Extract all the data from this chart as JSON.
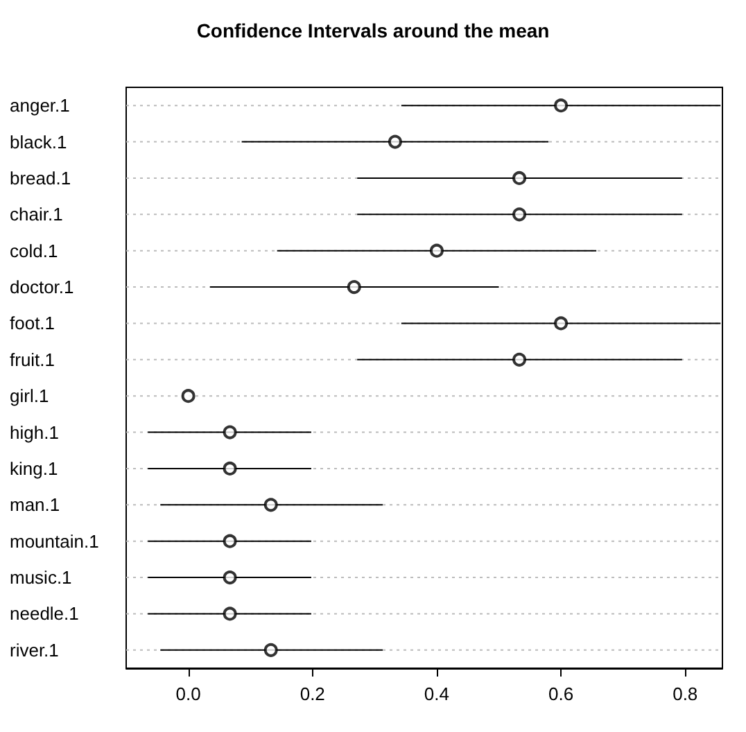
{
  "chart_data": {
    "type": "scatter",
    "orientation": "horizontal",
    "title": "Confidence Intervals around the mean",
    "categories": [
      "anger.1",
      "black.1",
      "bread.1",
      "chair.1",
      "cold.1",
      "doctor.1",
      "foot.1",
      "fruit.1",
      "girl.1",
      "high.1",
      "king.1",
      "man.1",
      "mountain.1",
      "music.1",
      "needle.1",
      "river.1"
    ],
    "values": [
      0.6,
      0.333,
      0.533,
      0.533,
      0.4,
      0.267,
      0.6,
      0.533,
      0,
      0.067,
      0.067,
      0.133,
      0.067,
      0.067,
      0.067,
      0.133
    ],
    "errors": [
      [
        0.343,
        0.857
      ],
      [
        0.086,
        0.58
      ],
      [
        0.272,
        0.795
      ],
      [
        0.272,
        0.795
      ],
      [
        0.143,
        0.657
      ],
      [
        0.035,
        0.5
      ],
      [
        0.343,
        0.857
      ],
      [
        0.272,
        0.795
      ],
      null,
      [
        -0.065,
        0.198
      ],
      [
        -0.065,
        0.198
      ],
      [
        -0.045,
        0.313
      ],
      [
        -0.065,
        0.198
      ],
      [
        -0.065,
        0.198
      ],
      [
        -0.065,
        0.198
      ],
      [
        -0.045,
        0.313
      ]
    ],
    "color": "#000000",
    "marker": "circle",
    "grid": "y",
    "xlim": [
      -0.1,
      0.86
    ],
    "xticks": [
      {
        "value": 0,
        "label": "0.0"
      },
      {
        "value": 0.2,
        "label": "0.2"
      },
      {
        "value": 0.4,
        "label": "0.4"
      },
      {
        "value": 0.6,
        "label": "0.6"
      },
      {
        "value": 0.8,
        "label": "0.8"
      }
    ]
  }
}
